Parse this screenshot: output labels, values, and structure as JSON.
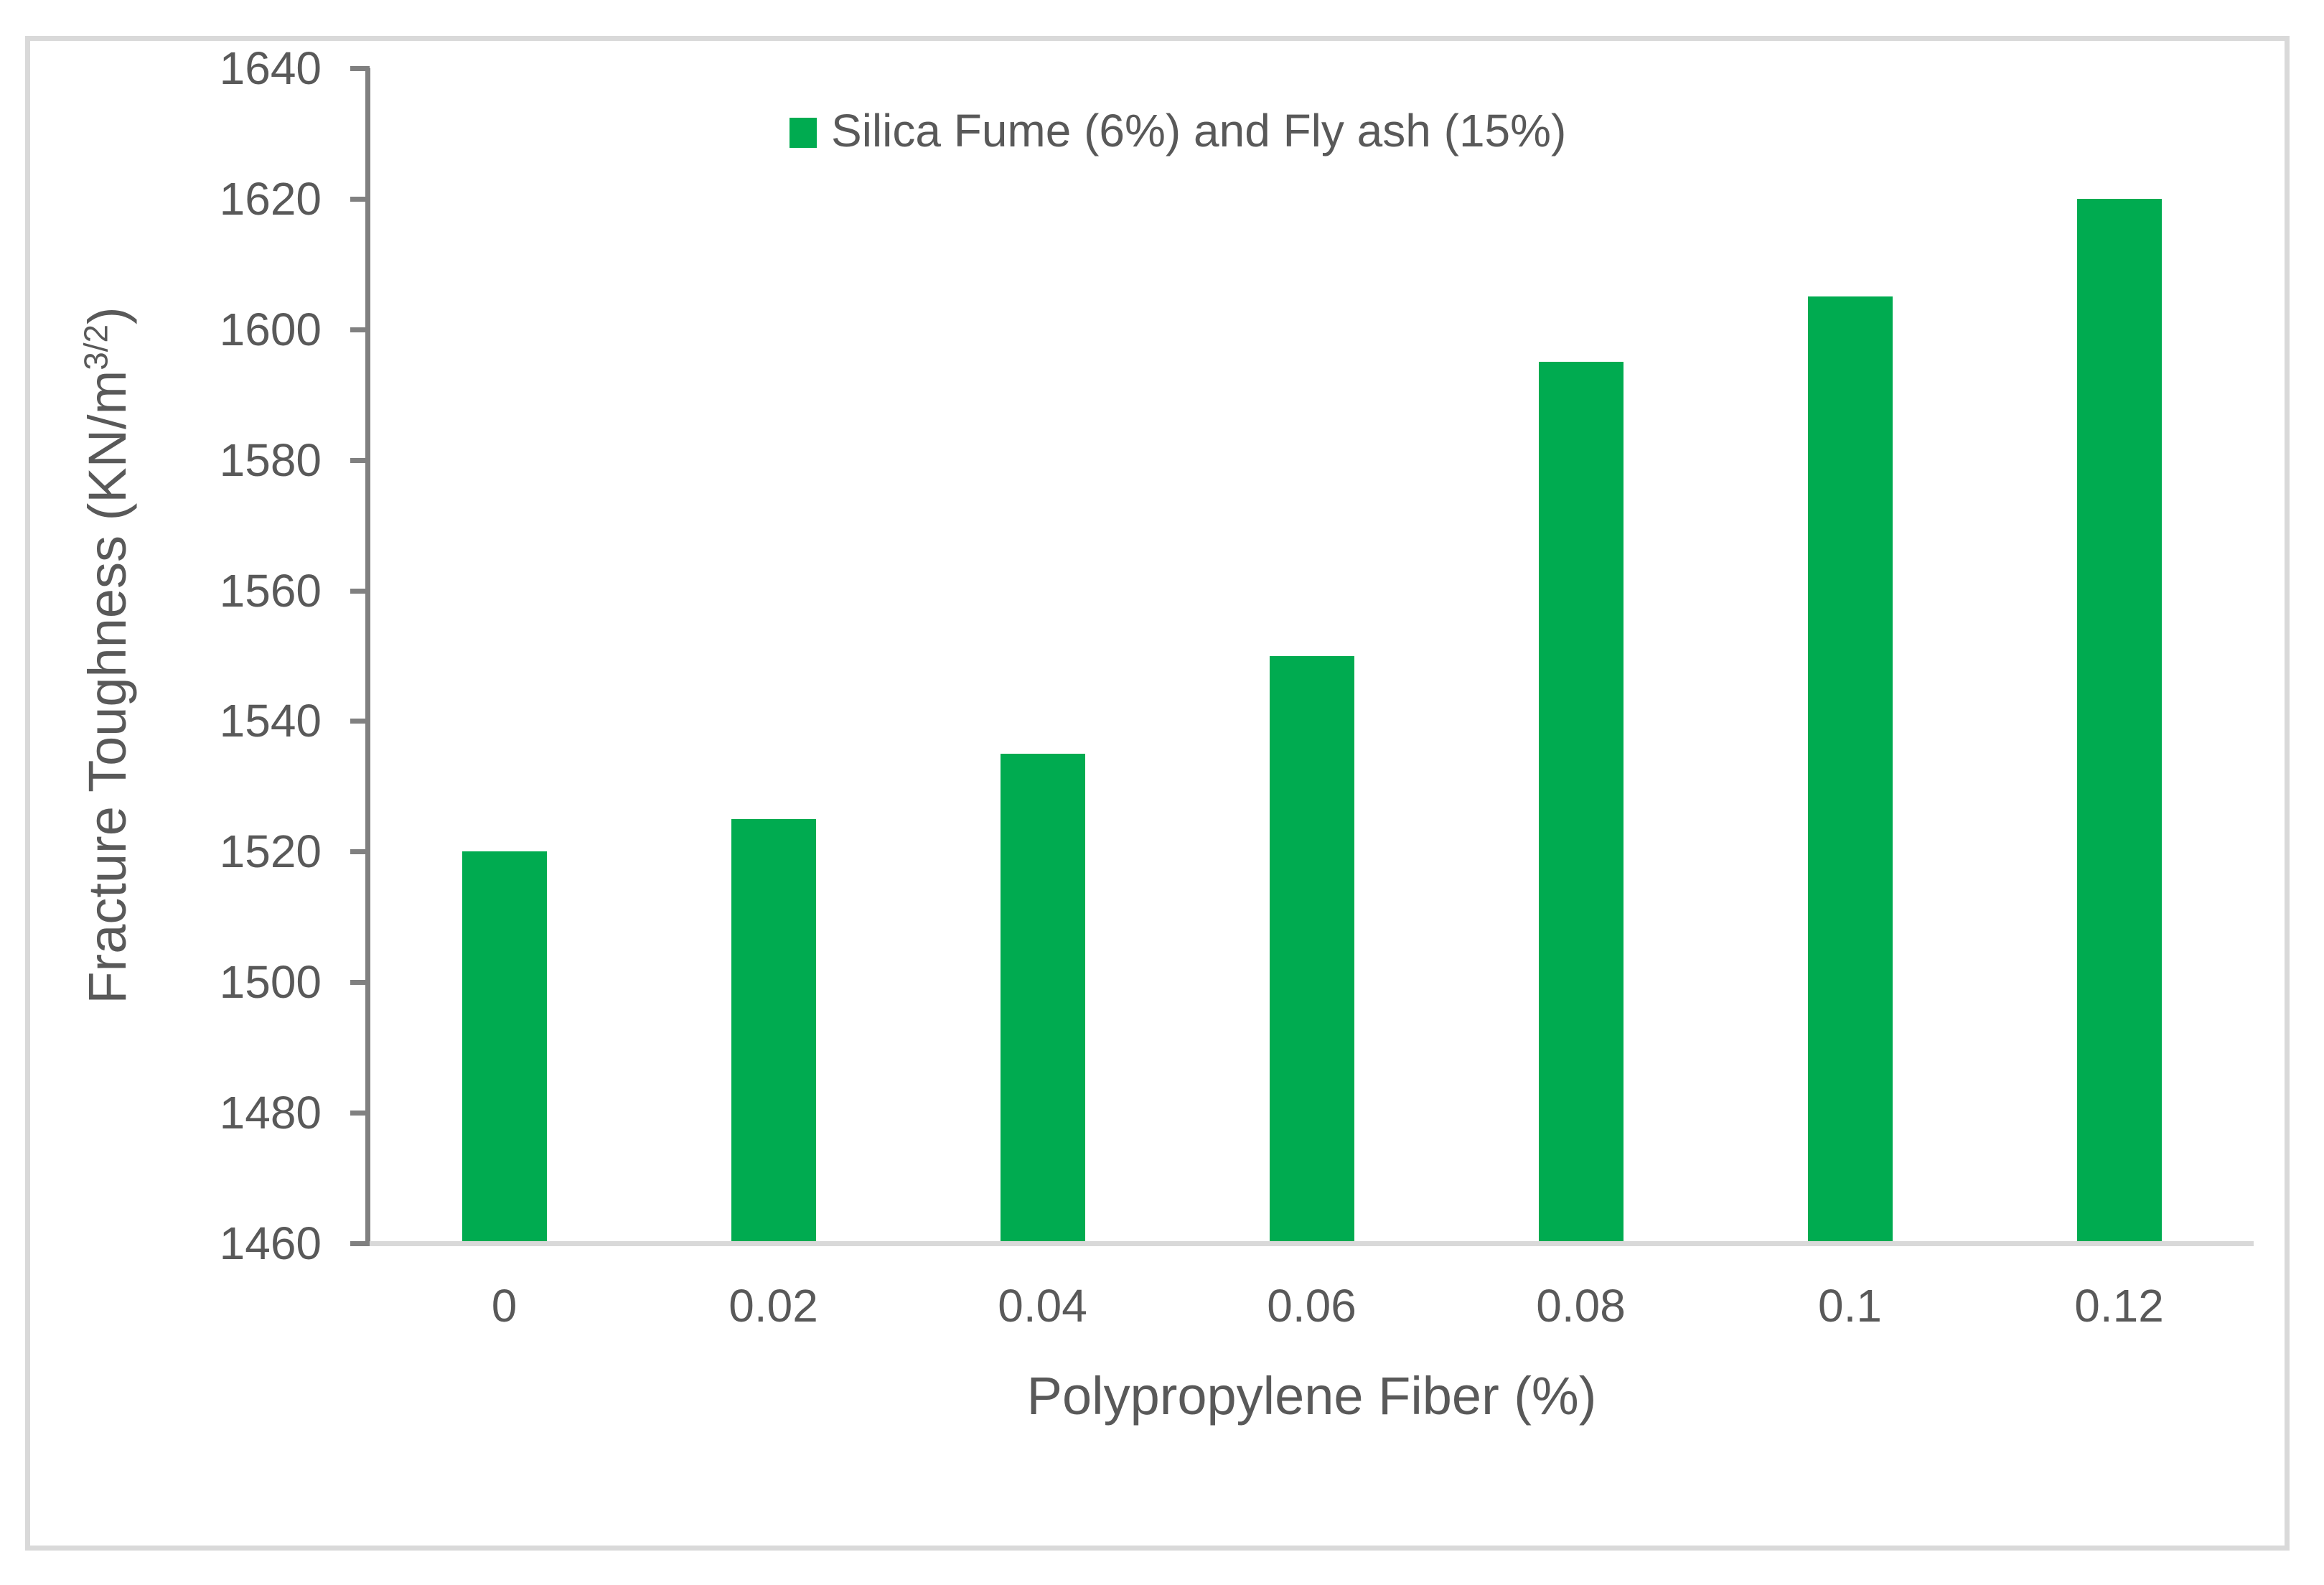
{
  "chart_data": {
    "type": "bar",
    "title": "",
    "legend_entries": [
      "Silica Fume (6%) and Fly ash (15%)"
    ],
    "legend_position": "top-center",
    "categories": [
      "0",
      "0.02",
      "0.04",
      "0.06",
      "0.08",
      "0.1",
      "0.12"
    ],
    "series": [
      {
        "name": "Silica Fume (6%) and Fly ash (15%)",
        "values": [
          1520,
          1525,
          1535,
          1550,
          1595,
          1605,
          1620
        ]
      }
    ],
    "xlabel": "Polypropylene Fiber (%)",
    "ylabel": "Fracture Toughness (KN/m3/2)",
    "ylabel_parts": {
      "prefix": "Fracture Toughness (KN/m",
      "superscript": "3/2",
      "suffix": ")"
    },
    "ylim": [
      1460,
      1640
    ],
    "ytick_step": 20,
    "ytick_labels": [
      "1640",
      "1620",
      "1600",
      "1580",
      "1560",
      "1540",
      "1520",
      "1500",
      "1480",
      "1460"
    ],
    "grid": "off",
    "colors": {
      "bar": "#00AB50",
      "text": "#595959",
      "value_axis_line": "#808080",
      "category_axis_line": "#D9D9D9",
      "chart_border": "#D9D9D9",
      "background": "#FFFFFF"
    }
  }
}
